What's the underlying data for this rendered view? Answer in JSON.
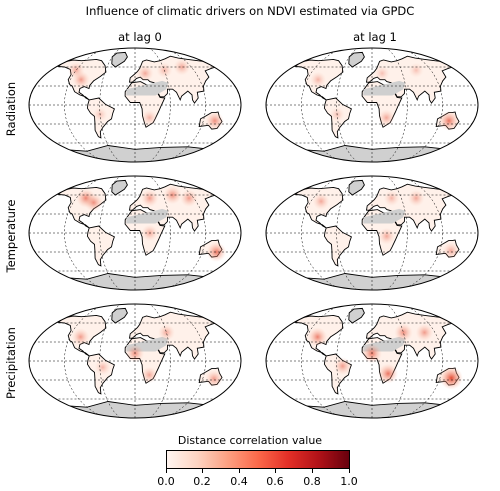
{
  "title": "Influence of climatic drivers on NDVI estimated via GPDC",
  "columns": [
    "at lag 0",
    "at lag 1"
  ],
  "rows": [
    "Radiation",
    "Temperature",
    "Precipitation"
  ],
  "colorbar": {
    "label": "Distance correlation value",
    "ticks": [
      "0.0",
      "0.2",
      "0.4",
      "0.6",
      "0.8",
      "1.0"
    ],
    "range": [
      0.0,
      1.0
    ],
    "colormap": "Reds",
    "colors": [
      "#fff5f0",
      "#fdd4c2",
      "#fca082",
      "#fb694a",
      "#e32f27",
      "#b11218",
      "#67000d"
    ]
  },
  "maps": [
    {
      "row": "Radiation",
      "column": "at lag 0",
      "hotspots": [
        [
          -100,
          40,
          0.35
        ],
        [
          -120,
          55,
          0.3
        ],
        [
          20,
          50,
          0.3
        ],
        [
          60,
          55,
          0.25
        ],
        [
          100,
          60,
          0.3
        ],
        [
          -60,
          -15,
          0.2
        ],
        [
          25,
          -20,
          0.25
        ],
        [
          140,
          -25,
          0.4
        ]
      ]
    },
    {
      "row": "Radiation",
      "column": "at lag 1",
      "hotspots": [
        [
          -100,
          40,
          0.25
        ],
        [
          20,
          50,
          0.2
        ],
        [
          90,
          55,
          0.2
        ],
        [
          -60,
          -15,
          0.2
        ],
        [
          25,
          -20,
          0.3
        ],
        [
          135,
          -25,
          0.5
        ]
      ]
    },
    {
      "row": "Temperature",
      "column": "at lag 0",
      "hotspots": [
        [
          -100,
          55,
          0.45
        ],
        [
          -80,
          48,
          0.4
        ],
        [
          30,
          55,
          0.35
        ],
        [
          80,
          60,
          0.4
        ],
        [
          110,
          55,
          0.35
        ],
        [
          25,
          0,
          0.3
        ],
        [
          145,
          -30,
          0.5
        ]
      ]
    },
    {
      "row": "Temperature",
      "column": "at lag 1",
      "hotspots": [
        [
          -100,
          50,
          0.3
        ],
        [
          40,
          55,
          0.25
        ],
        [
          90,
          55,
          0.3
        ],
        [
          25,
          -5,
          0.3
        ],
        [
          140,
          -28,
          0.3
        ]
      ]
    },
    {
      "row": "Precipitation",
      "column": "at lag 0",
      "hotspots": [
        [
          -100,
          38,
          0.35
        ],
        [
          0,
          12,
          0.4
        ],
        [
          60,
          45,
          0.3
        ],
        [
          -55,
          -10,
          0.25
        ],
        [
          25,
          -22,
          0.3
        ],
        [
          140,
          -28,
          0.35
        ]
      ]
    },
    {
      "row": "Precipitation",
      "column": "at lag 1",
      "hotspots": [
        [
          -100,
          38,
          0.45
        ],
        [
          0,
          12,
          0.5
        ],
        [
          60,
          45,
          0.4
        ],
        [
          100,
          45,
          0.35
        ],
        [
          -50,
          -8,
          0.35
        ],
        [
          28,
          -20,
          0.5
        ],
        [
          140,
          -27,
          0.7
        ]
      ]
    }
  ]
}
